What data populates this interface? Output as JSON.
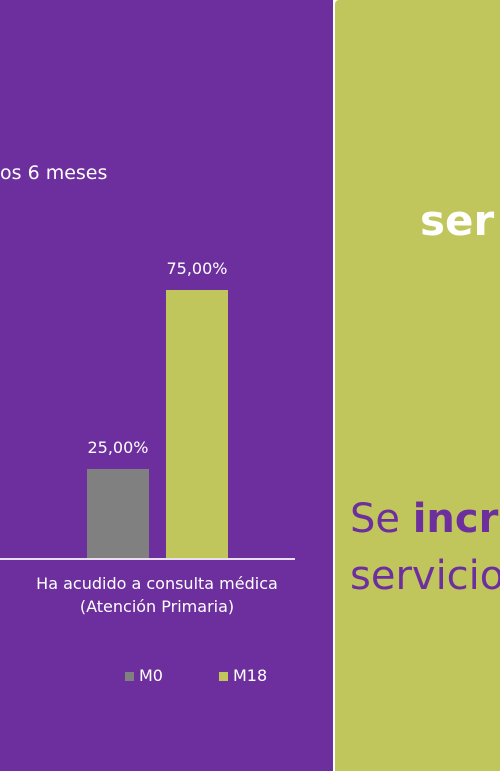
{
  "chart_data": {
    "type": "bar",
    "title": "os 6 meses",
    "categories": [
      "Ha acudido a consulta médica (Atención Primaria)"
    ],
    "series": [
      {
        "name": "M0",
        "color": "#808080",
        "values": [
          25
        ],
        "value_labels": [
          "25,00%"
        ]
      },
      {
        "name": "M18",
        "color": "#c0c65b",
        "values": [
          75
        ],
        "value_labels": [
          "75,00%"
        ]
      }
    ]
  },
  "panel": {
    "headline": "ser",
    "line1_normal": "Se",
    "line1_bold": "incr",
    "line2": "servicio"
  }
}
